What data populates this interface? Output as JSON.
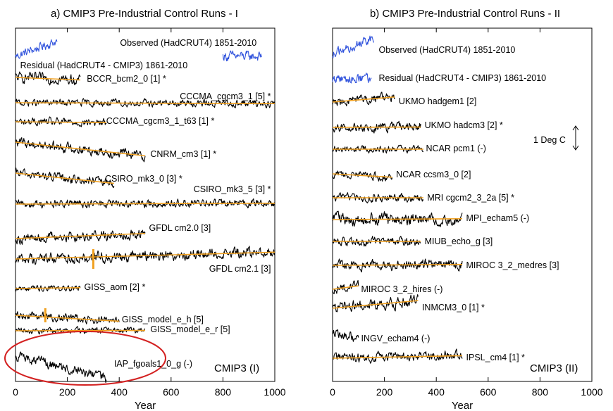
{
  "chart_data": [
    {
      "type": "line",
      "title": "a) CMIP3 Pre-Industrial Control Runs - I",
      "xlabel": "Year",
      "xlim": [
        0,
        1000
      ],
      "xticks": [
        0,
        200,
        400,
        600,
        800,
        1000
      ],
      "tag": "CMIP3 (I)",
      "highlight": "IAP_fgoals1_0_g (-)",
      "series": [
        {
          "name": "Observed (HadCRUT4) 1851-2010",
          "color": "#3355dd",
          "years": 160,
          "slope": 0.9,
          "noise": 0.45,
          "trend": false
        },
        {
          "name": "Residual (HadCRUT4 - CMIP3) 1861-2010",
          "color": "#3355dd",
          "years": 150,
          "slope": 0,
          "noise": 0.5,
          "trend": false
        },
        {
          "name": "BCCR_bcm2_0 [1] *",
          "color": "#000000",
          "years": 250,
          "slope": -0.15,
          "noise": 0.5,
          "trend": true
        },
        {
          "name": "CCCMA_cgcm3_1 [5] *",
          "color": "#000000",
          "years": 1000,
          "slope": -0.05,
          "noise": 0.35,
          "trend": true
        },
        {
          "name": "CCCMA_cgcm3_1_t63 [1] *",
          "color": "#000000",
          "years": 350,
          "slope": -0.05,
          "noise": 0.4,
          "trend": true
        },
        {
          "name": "CNRM_cm3 [1] *",
          "color": "#000000",
          "years": 500,
          "slope": -0.8,
          "noise": 0.5,
          "trend": true
        },
        {
          "name": "CSIRO_mk3_0 [3] *",
          "color": "#000000",
          "years": 380,
          "slope": -0.6,
          "noise": 0.45,
          "trend": true
        },
        {
          "name": "CSIRO_mk3_5 [3] *",
          "color": "#000000",
          "years": 1000,
          "slope": 0.05,
          "noise": 0.4,
          "trend": true
        },
        {
          "name": "GFDL cm2.0 [3]",
          "color": "#000000",
          "years": 500,
          "slope": 0.3,
          "noise": 0.5,
          "trend": true
        },
        {
          "name": "GFDL cm2.1 [3]",
          "color": "#000000",
          "years": 1000,
          "slope": 0.4,
          "noise": 0.55,
          "trend": true
        },
        {
          "name": "GISS_aom [2] *",
          "color": "#000000",
          "years": 250,
          "slope": 0.05,
          "noise": 0.3,
          "trend": true
        },
        {
          "name": "GISS_model_e_h [5]",
          "color": "#000000",
          "years": 400,
          "slope": -0.35,
          "noise": 0.4,
          "trend": true
        },
        {
          "name": "GISS_model_e_r [5]",
          "color": "#000000",
          "years": 500,
          "slope": 0.02,
          "noise": 0.3,
          "trend": true
        },
        {
          "name": "IAP_fgoals1_0_g (-)",
          "color": "#000000",
          "years": 350,
          "slope": -1.4,
          "noise": 0.5,
          "trend": false
        }
      ]
    },
    {
      "type": "line",
      "title": "b) CMIP3 Pre-Industrial Control Runs - II",
      "xlabel": "Year",
      "xlim": [
        0,
        1000
      ],
      "xticks": [
        0,
        200,
        400,
        600,
        800,
        1000
      ],
      "tag": "CMIP3 (II)",
      "scale_bar_label": "1 Deg C",
      "series": [
        {
          "name": "Observed (HadCRUT4)  1851-2010",
          "color": "#3355dd",
          "years": 160,
          "slope": 0.9,
          "noise": 0.45,
          "trend": false
        },
        {
          "name": "Residual (HadCRUT4 - CMIP3) 1861-2010",
          "color": "#3355dd",
          "years": 150,
          "slope": 0,
          "noise": 0.5,
          "trend": false
        },
        {
          "name": "UKMO hadgem1 [2]",
          "color": "#000000",
          "years": 240,
          "slope": 0.3,
          "noise": 0.45,
          "trend": true
        },
        {
          "name": "UKMO hadcm3 [2] *",
          "color": "#000000",
          "years": 340,
          "slope": 0.02,
          "noise": 0.45,
          "trend": true
        },
        {
          "name": "NCAR pcm1 (-)",
          "color": "#000000",
          "years": 350,
          "slope": 0.0,
          "noise": 0.35,
          "trend": true
        },
        {
          "name": "NCAR ccsm3_0 [2]",
          "color": "#000000",
          "years": 230,
          "slope": -0.2,
          "noise": 0.4,
          "trend": true
        },
        {
          "name": "MRI cgcm2_3_2a [5] *",
          "color": "#000000",
          "years": 350,
          "slope": 0.0,
          "noise": 0.4,
          "trend": true
        },
        {
          "name": "MPI_echam5 (-)",
          "color": "#000000",
          "years": 500,
          "slope": 0.05,
          "noise": 0.6,
          "trend": true
        },
        {
          "name": "MIUB_echo_g [3]",
          "color": "#000000",
          "years": 340,
          "slope": 0.0,
          "noise": 0.45,
          "trend": true
        },
        {
          "name": "MIROC 3_2_medres [3]",
          "color": "#000000",
          "years": 500,
          "slope": 0.05,
          "noise": 0.5,
          "trend": true
        },
        {
          "name": "MIROC 3_2_hires (-)",
          "color": "#000000",
          "years": 100,
          "slope": 0.2,
          "noise": 0.45,
          "trend": true
        },
        {
          "name": "INMCM3_0 [1] *",
          "color": "#000000",
          "years": 330,
          "slope": 0.45,
          "noise": 0.55,
          "trend": true
        },
        {
          "name": "INGV_echam4 (-)",
          "color": "#000000",
          "years": 100,
          "slope": -0.2,
          "noise": 0.45,
          "trend": false
        },
        {
          "name": "IPSL_cm4 [1] *",
          "color": "#000000",
          "years": 500,
          "slope": 0.15,
          "noise": 0.5,
          "trend": true
        }
      ]
    }
  ]
}
